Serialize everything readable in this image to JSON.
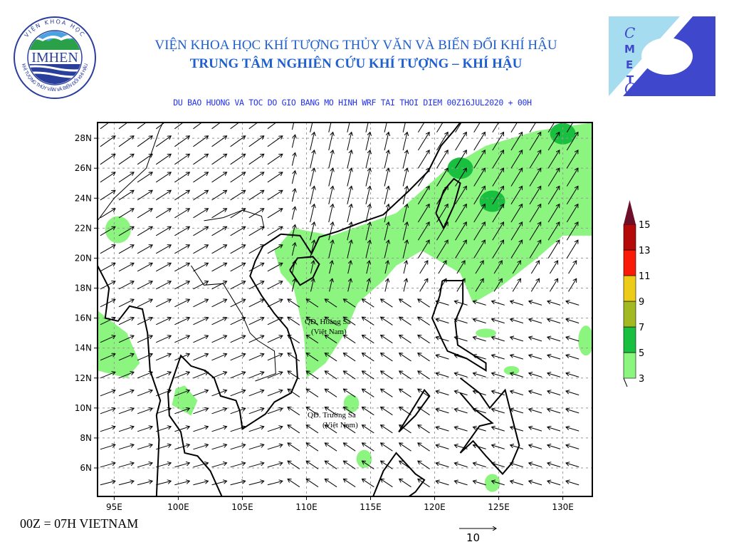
{
  "header": {
    "title_line1": "VIỆN KHOA HỌC KHÍ TƯỢNG THỦY VĂN VÀ BIẾN ĐỔI KHÍ HẬU",
    "title_line2": "TRUNG TÂM NGHIÊN CỨU KHÍ TƯỢNG – KHÍ HẬU",
    "subtitle": "DU BAO HUONG VA TOC DO GIO BANG MO HINH WRF TAI THOI DIEM  00Z16JUL2020 + 00H"
  },
  "logos": {
    "left": {
      "text": "IMHEN",
      "ring_top": "VIỆN KHOA HỌC",
      "ring_bottom": "KHÍ TƯỢNG THỦY VĂN VÀ BIẾN ĐỔI KHÍ HẬU"
    },
    "right": {
      "text": "CMETC",
      "colors": {
        "light": "#a6dcef",
        "dark": "#3f48cc"
      }
    }
  },
  "map": {
    "lon_ticks": [
      "95E",
      "100E",
      "105E",
      "110E",
      "115E",
      "120E",
      "125E",
      "130E"
    ],
    "lat_ticks": [
      "6N",
      "8N",
      "10N",
      "12N",
      "14N",
      "16N",
      "18N",
      "20N",
      "22N",
      "24N",
      "26N",
      "28N"
    ],
    "lon_range": [
      93.7,
      132.3
    ],
    "lat_range": [
      4.1,
      29.05
    ],
    "labels": {
      "hoang_sa": "QĐ. Hoàng Sa",
      "hoang_sa_country": "(Việt Nam)",
      "truong_sa": "QĐ. Trường Sa",
      "truong_sa_country": "(Việt Nam)"
    },
    "shading_color": "#8cf57f",
    "shading_dark": "#19c040"
  },
  "colorbar": {
    "labels": [
      "3",
      "5",
      "7",
      "9",
      "11",
      "13",
      "15"
    ],
    "colors": [
      "#8cf57f",
      "#19c040",
      "#a3b922",
      "#eccb19",
      "#fa1a0a",
      "#b50a0a",
      "#6e0f2a"
    ]
  },
  "footer": {
    "note": "00Z = 07H VIETNAM",
    "reference_vector": "10"
  }
}
